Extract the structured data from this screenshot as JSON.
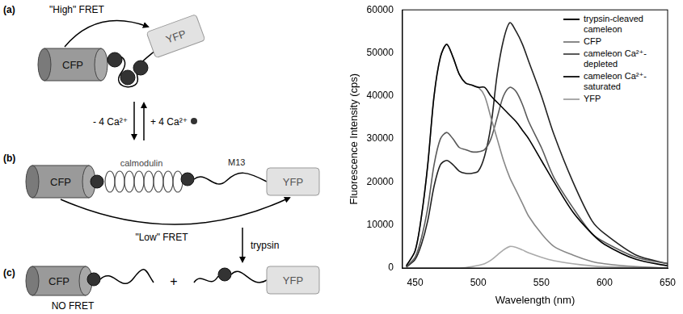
{
  "diagram": {
    "panel_a": {
      "letter": "(a)",
      "donor": "CFP",
      "acceptor": "YFP",
      "transfer": "\"High\" FRET"
    },
    "equilibrium": {
      "release": "- 4 Ca²⁺",
      "bind": "+ 4 Ca²⁺"
    },
    "panel_b": {
      "letter": "(b)",
      "donor": "CFP",
      "linker": "calmodulin",
      "peptide": "M13",
      "acceptor": "YFP",
      "transfer": "\"Low\" FRET"
    },
    "cleavage": "trypsin",
    "panel_c": {
      "letter": "(c)",
      "donor": "CFP",
      "joiner": "+",
      "acceptor": "YFP",
      "transfer": "NO FRET"
    }
  },
  "chart_data": {
    "type": "line",
    "x_label": "Wavelength (nm)",
    "y_label": "Fluorescence Intensity (cps)",
    "x": [
      443,
      450,
      455,
      460,
      465,
      470,
      475,
      480,
      485,
      490,
      495,
      500,
      505,
      510,
      515,
      520,
      525,
      530,
      535,
      540,
      550,
      560,
      575,
      590,
      600,
      625,
      650
    ],
    "series": [
      {
        "name": "trypsin-cleaved cameleon",
        "color": "#000000",
        "values": [
          500,
          4000,
          12000,
          24000,
          40000,
          49000,
          52000,
          49000,
          45000,
          43000,
          42500,
          42000,
          42000,
          40000,
          38500,
          37000,
          35500,
          34000,
          32000,
          30000,
          25000,
          20000,
          13000,
          8000,
          5500,
          2000,
          500
        ]
      },
      {
        "name": "CFP",
        "color": "#888888",
        "values": [
          500,
          4000,
          12000,
          24000,
          40000,
          49000,
          52000,
          49000,
          45000,
          43000,
          42500,
          42000,
          40000,
          35000,
          30000,
          25000,
          21000,
          18000,
          15000,
          12000,
          8000,
          5000,
          3000,
          1500,
          1000,
          300,
          0
        ]
      },
      {
        "name": "cameleon Ca²⁺-depleted",
        "color": "#5a5a5a",
        "values": [
          300,
          2500,
          7000,
          14000,
          24000,
          30000,
          31500,
          30000,
          28000,
          27500,
          27000,
          27000,
          27500,
          30000,
          35000,
          40000,
          42000,
          41000,
          38000,
          34000,
          28000,
          21000,
          14000,
          8000,
          6000,
          2500,
          1000
        ]
      },
      {
        "name": "cameleon Ca²⁺-saturated",
        "color": "#222222",
        "values": [
          200,
          2000,
          5500,
          11000,
          19000,
          24000,
          25000,
          24000,
          22500,
          22000,
          22000,
          22500,
          26000,
          33000,
          45000,
          53000,
          57000,
          55000,
          52000,
          48000,
          40000,
          31000,
          20000,
          11000,
          8000,
          3000,
          1000
        ]
      },
      {
        "name": "YFP",
        "color": "#aaaaaa",
        "values": [
          0,
          0,
          0,
          0,
          0,
          0,
          0,
          0,
          0,
          100,
          300,
          600,
          1000,
          1800,
          3000,
          4200,
          5000,
          4800,
          4200,
          3500,
          2500,
          1700,
          1000,
          500,
          300,
          100,
          0
        ]
      }
    ],
    "xlim": [
      440,
      650
    ],
    "xticks": [
      450,
      500,
      550,
      600,
      650
    ],
    "ylim": [
      0,
      60000
    ],
    "yticks": [
      0,
      10000,
      20000,
      30000,
      40000,
      50000,
      60000
    ],
    "grid": false,
    "legend": "upper right"
  }
}
